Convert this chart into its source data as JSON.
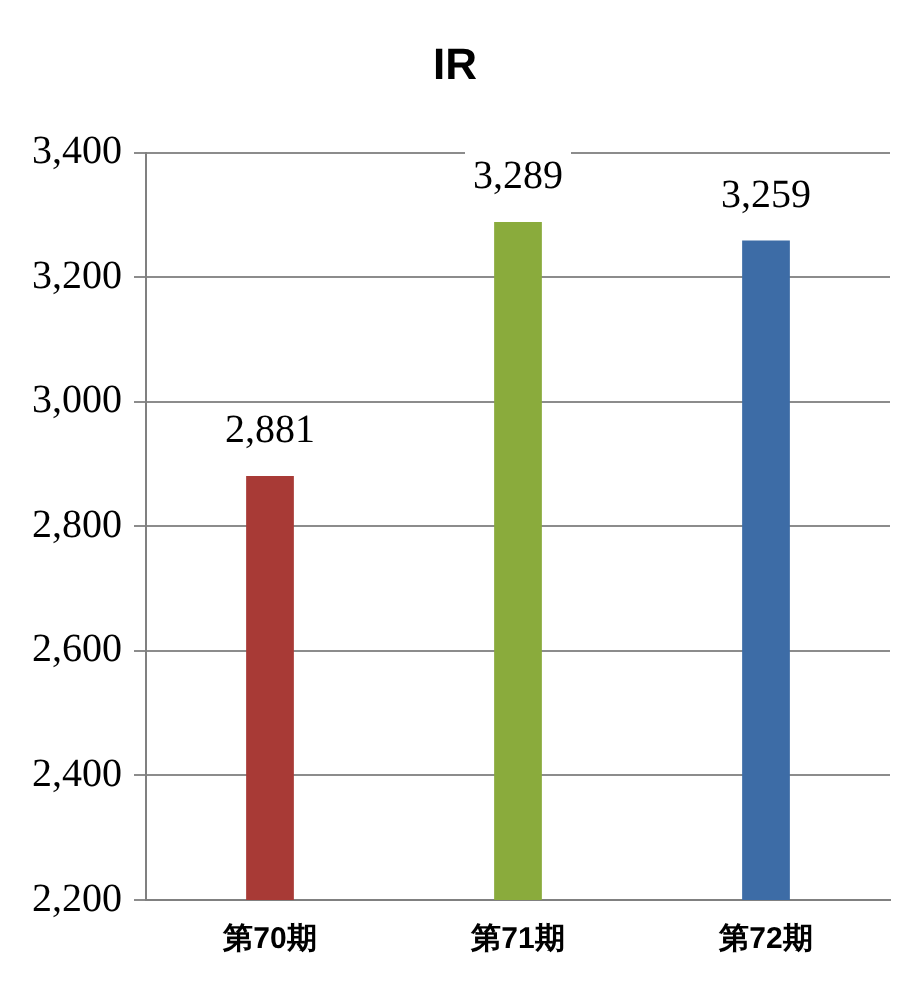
{
  "chart_data": {
    "type": "bar",
    "title": "IR",
    "categories": [
      "第70期",
      "第71期",
      "第72期"
    ],
    "values": [
      2881,
      3289,
      3259
    ],
    "colors": [
      "#a83a36",
      "#8aab3c",
      "#3d6ca6"
    ],
    "value_labels": [
      "2,881",
      "3,289",
      "3,259"
    ],
    "ylim": [
      2200,
      3400
    ],
    "yticks": [
      {
        "value": 2200,
        "label": "2,200"
      },
      {
        "value": 2400,
        "label": "2,400"
      },
      {
        "value": 2600,
        "label": "2,600"
      },
      {
        "value": 2800,
        "label": "2,800"
      },
      {
        "value": 3000,
        "label": "3,000"
      },
      {
        "value": 3200,
        "label": "3,200"
      },
      {
        "value": 3400,
        "label": "3,400"
      }
    ],
    "grid": "y",
    "legend": false
  }
}
